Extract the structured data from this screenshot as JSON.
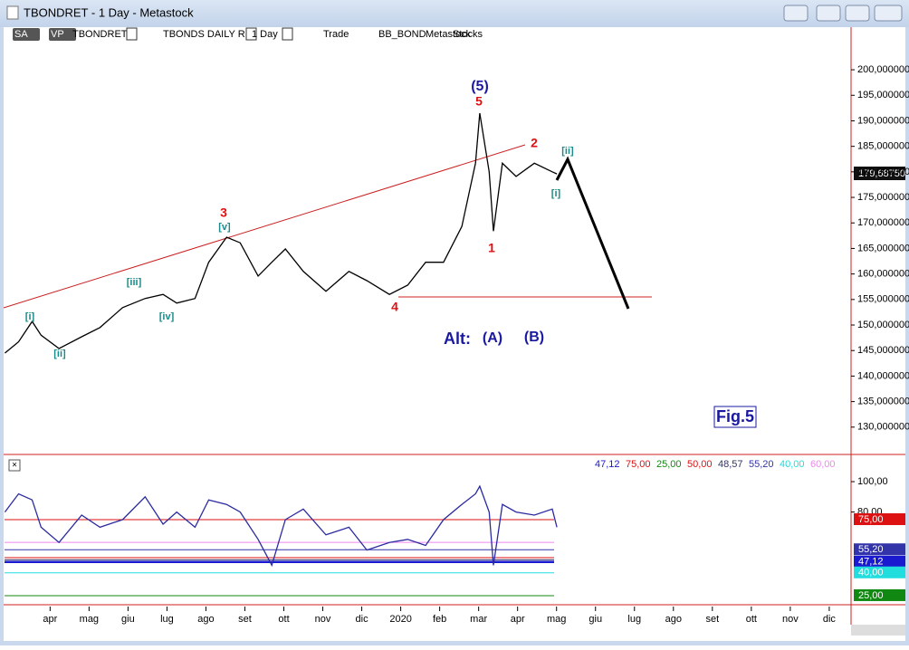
{
  "window": {
    "title": "TBONDRET - 1 Day - Metastock",
    "toolbar": [
      "SA",
      "VP",
      "TBONDRET",
      "TBONDS DAILY RE",
      "1 Day",
      "Trade",
      "BB_BOND",
      "Metastock",
      "Stocks"
    ],
    "last_price": "179,68750",
    "fig_label": "Fig.5"
  },
  "chart_data": [
    {
      "type": "line",
      "categories": [
        "apr",
        "mag",
        "giu",
        "lug",
        "ago",
        "set",
        "ott",
        "nov",
        "dic",
        "2020",
        "feb",
        "mar",
        "apr",
        "mag",
        "giu",
        "lug",
        "ago",
        "set",
        "ott",
        "nov",
        "dic"
      ],
      "x": [
        -1.16,
        -0.81,
        -0.46,
        -0.23,
        0.23,
        0.81,
        1.28,
        1.86,
        2.44,
        2.9,
        3.25,
        3.72,
        4.07,
        4.53,
        4.88,
        5.34,
        5.69,
        6.04,
        6.5,
        7.08,
        7.67,
        8.13,
        8.71,
        9.18,
        9.64,
        10.1,
        10.57,
        10.92,
        11.03,
        11.27,
        11.38,
        11.61,
        11.96,
        12.43,
        12.89,
        13.01
      ],
      "values": [
        144500,
        146700,
        150700,
        148000,
        145400,
        147700,
        149500,
        153400,
        155200,
        156000,
        154300,
        155200,
        162300,
        167200,
        166100,
        159600,
        162300,
        164900,
        160500,
        156600,
        160500,
        158700,
        156000,
        157800,
        162300,
        162300,
        169300,
        181700,
        191500,
        180000,
        168400,
        181700,
        179100,
        181700,
        180000,
        179600
      ],
      "color": "#000000",
      "xlim": [
        -1.17,
        20.56
      ],
      "ylim": [
        125000,
        204800
      ],
      "yticks": [
        {
          "value": 130000,
          "label": "130,000000"
        },
        {
          "value": 135000,
          "label": "135,000000"
        },
        {
          "value": 140000,
          "label": "140,000000"
        },
        {
          "value": 145000,
          "label": "145,000000"
        },
        {
          "value": 150000,
          "label": "150,000000"
        },
        {
          "value": 155000,
          "label": "155,000000"
        },
        {
          "value": 160000,
          "label": "160,000000"
        },
        {
          "value": 165000,
          "label": "165,000000"
        },
        {
          "value": 170000,
          "label": "170,000000"
        },
        {
          "value": 175000,
          "label": "175,000000"
        },
        {
          "value": 180000,
          "label": "180,000000"
        },
        {
          "value": 185000,
          "label": "185,000000"
        },
        {
          "value": 190000,
          "label": "190,000000"
        },
        {
          "value": 195000,
          "label": "195,000000"
        },
        {
          "value": 200000,
          "label": "200,000000"
        }
      ],
      "annotations": [
        {
          "text": "(5)",
          "color": "#1a1aa0"
        },
        {
          "text": "5",
          "color": "#dd1111"
        },
        {
          "text": "2",
          "color": "#dd1111"
        },
        {
          "text": "[ii]",
          "color": "#1a8a8a"
        },
        {
          "text": "[i]",
          "color": "#1a8a8a"
        },
        {
          "text": "1",
          "color": "#dd1111"
        },
        {
          "text": "3",
          "color": "#dd1111"
        },
        {
          "text": "[v]",
          "color": "#1a8a8a"
        },
        {
          "text": "[iii]",
          "color": "#1a8a8a"
        },
        {
          "text": "[iv]",
          "color": "#1a8a8a"
        },
        {
          "text": "[i]",
          "color": "#1a8a8a"
        },
        {
          "text": "[ii]",
          "color": "#1a8a8a"
        },
        {
          "text": "4",
          "color": "#dd1111"
        },
        {
          "text": "Alt:",
          "color": "#1a1aa0"
        },
        {
          "text": "(A)",
          "color": "#1a1aa0"
        },
        {
          "text": "(B)",
          "color": "#1a1aa0"
        }
      ]
    },
    {
      "type": "line",
      "x": [
        -1.16,
        -0.81,
        -0.46,
        -0.23,
        0.23,
        0.81,
        1.28,
        1.86,
        2.44,
        2.9,
        3.25,
        3.72,
        4.07,
        4.53,
        4.88,
        5.34,
        5.69,
        6.04,
        6.5,
        7.08,
        7.67,
        8.13,
        8.71,
        9.18,
        9.64,
        10.1,
        10.57,
        10.92,
        11.03,
        11.27,
        11.38,
        11.61,
        11.96,
        12.43,
        12.89,
        13.01
      ],
      "values": [
        80,
        92,
        88,
        70,
        60,
        78,
        70,
        75,
        90,
        72,
        80,
        70,
        88,
        85,
        80,
        62,
        45,
        75,
        82,
        65,
        70,
        55,
        60,
        62,
        58,
        75,
        85,
        92,
        97,
        80,
        45,
        85,
        80,
        78,
        82,
        70
      ],
      "color": "#2a2aa0",
      "ylim": [
        20.8,
        116.1
      ],
      "yticks": [
        {
          "value": 100,
          "label": "100,00"
        },
        {
          "value": 80,
          "label": "80,00"
        }
      ],
      "levels": [
        {
          "value": 47.12,
          "label": "47,12",
          "color": "#1a1ad0",
          "badge": true
        },
        {
          "value": 75,
          "label": "75,00",
          "color": "#dd1111",
          "badge": true
        },
        {
          "value": 25,
          "label": "25,00",
          "color": "#118811",
          "badge": true
        },
        {
          "value": 50,
          "label": "50,00",
          "color": "#dd1111",
          "badge": false
        },
        {
          "value": 48.57,
          "label": "48,57",
          "color": "#333366",
          "badge": false
        },
        {
          "value": 55.2,
          "label": "55,20",
          "color": "#3333aa",
          "badge": true
        },
        {
          "value": 40,
          "label": "40,00",
          "color": "#22dddd",
          "badge": true
        },
        {
          "value": 60,
          "label": "60,00",
          "color": "#ee88ee",
          "badge": false
        }
      ]
    }
  ]
}
